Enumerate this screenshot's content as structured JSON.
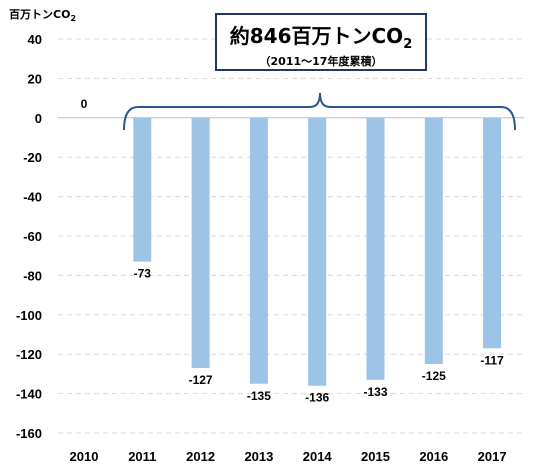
{
  "unit_label": {
    "text": "百万トンCO",
    "sub": "2"
  },
  "callout": {
    "main": "約846百万トンCO",
    "main_sub": "2",
    "sub": "（2011～17年度累積）"
  },
  "colors": {
    "bar": "#9dc3e6",
    "brace": "#2e5395",
    "box_border": "#1f3864",
    "grid": "#d9d9d9"
  },
  "chart_data": {
    "type": "bar",
    "categories": [
      "2010",
      "2011",
      "2012",
      "2013",
      "2014",
      "2015",
      "2016",
      "2017"
    ],
    "values": [
      0,
      -73,
      -127,
      -135,
      -136,
      -133,
      -125,
      -117
    ],
    "data_labels": [
      "0",
      "-73",
      "-127",
      "-135",
      "-136",
      "-133",
      "-125",
      "-117"
    ],
    "ylim": [
      -160,
      40
    ],
    "yticks": [
      40,
      20,
      0,
      -20,
      -40,
      -60,
      -80,
      -100,
      -120,
      -140,
      -160
    ],
    "grid": true,
    "ylabel": "百万トンCO2"
  }
}
